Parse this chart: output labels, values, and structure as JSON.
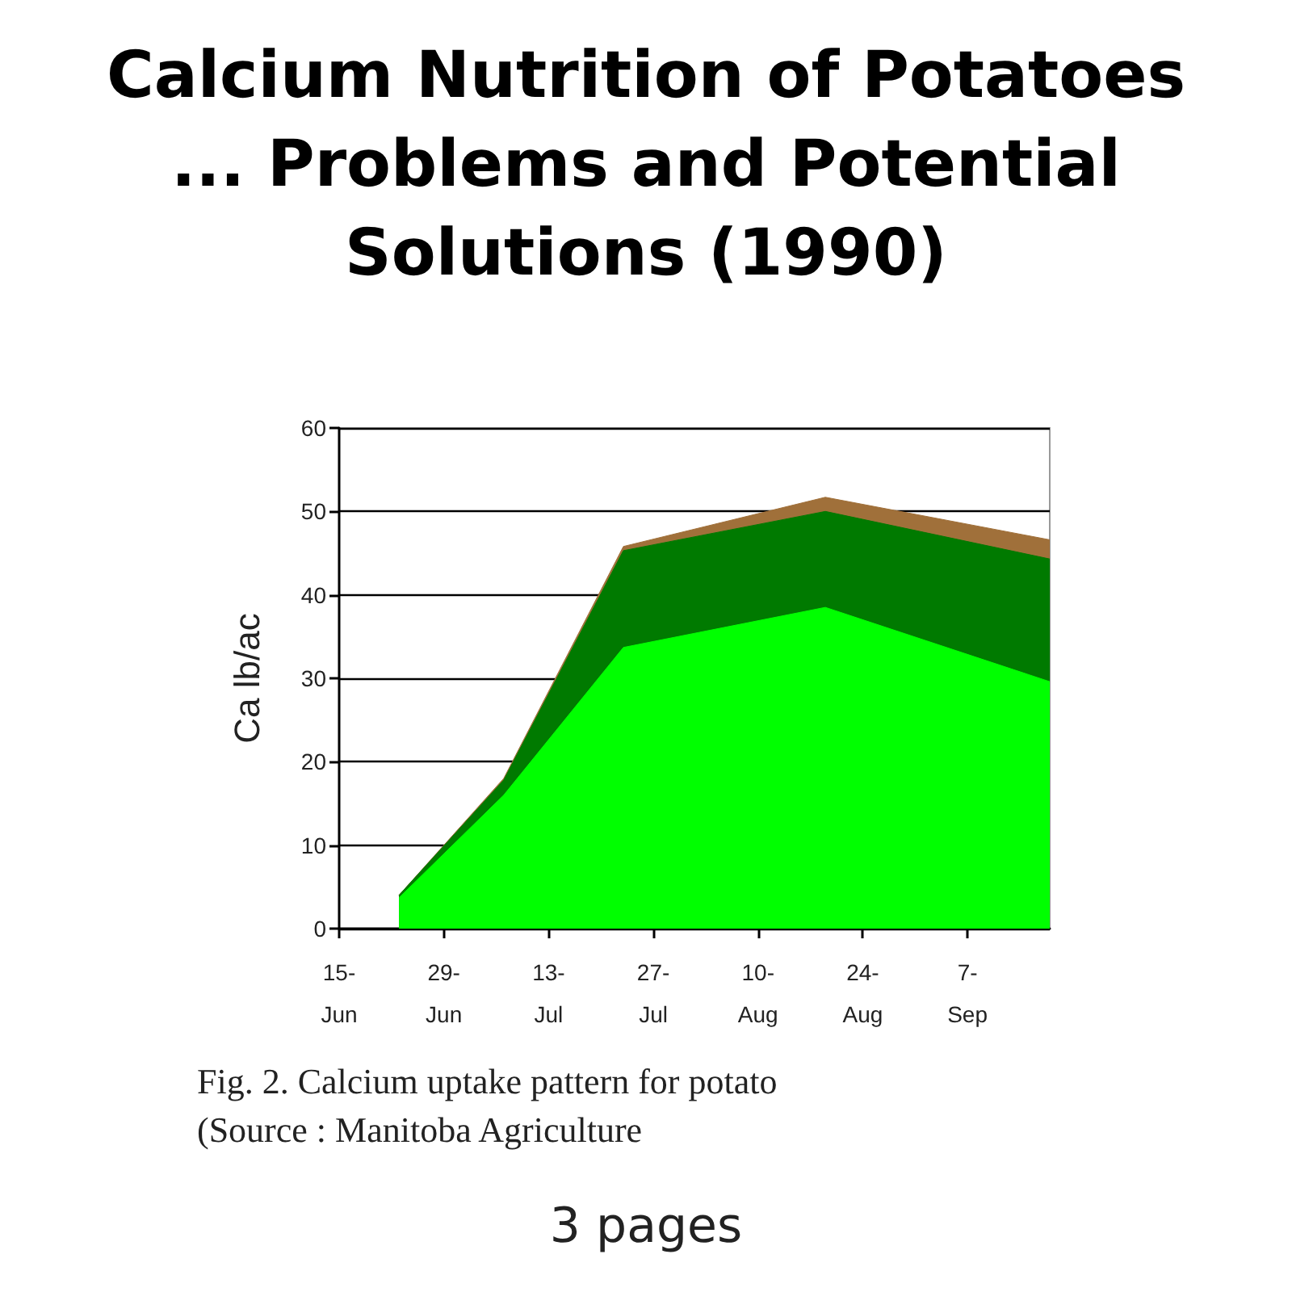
{
  "chart_data": {
    "type": "area",
    "title": "Calcium Nutrition of Potatoes ... Problems and Potential Solutions (1990)",
    "ylabel": "Ca lb/ac",
    "stacked": true,
    "grid": "y",
    "annotations": [
      "Fig. 2. Calcium uptake pattern for potato",
      "(Source : Manitoba Agriculture",
      "3 pages"
    ],
    "x": [
      "--06-23",
      "--07-07",
      "--07-23",
      "--08-19",
      "--09-18"
    ],
    "series": [
      {
        "color": "#00ff00",
        "values": [
          3.7,
          16,
          33.7,
          38.5,
          29.6
        ]
      },
      {
        "color": "#007a00",
        "values": [
          0.3,
          1.8,
          11.6,
          11.5,
          14.7
        ]
      },
      {
        "color": "#a0703a",
        "values": [
          0,
          0.2,
          0.5,
          1.7,
          2.3
        ]
      }
    ],
    "xlim": [
      "--06-15",
      "--09-18"
    ],
    "xticks": [
      {
        "value": "--06-15",
        "label": "15-\nJun"
      },
      {
        "value": "--06-29",
        "label": "29-\nJun"
      },
      {
        "value": "--07-13",
        "label": "13-\nJul"
      },
      {
        "value": "--07-27",
        "label": "27-\nJul"
      },
      {
        "value": "--08-10",
        "label": "10-\nAug"
      },
      {
        "value": "--08-24",
        "label": "24-\nAug"
      },
      {
        "value": "--09-07",
        "label": "7-\nSep"
      }
    ],
    "ylim": [
      0,
      60
    ],
    "yticks": [
      0,
      10,
      20,
      30,
      40,
      50,
      60
    ]
  }
}
